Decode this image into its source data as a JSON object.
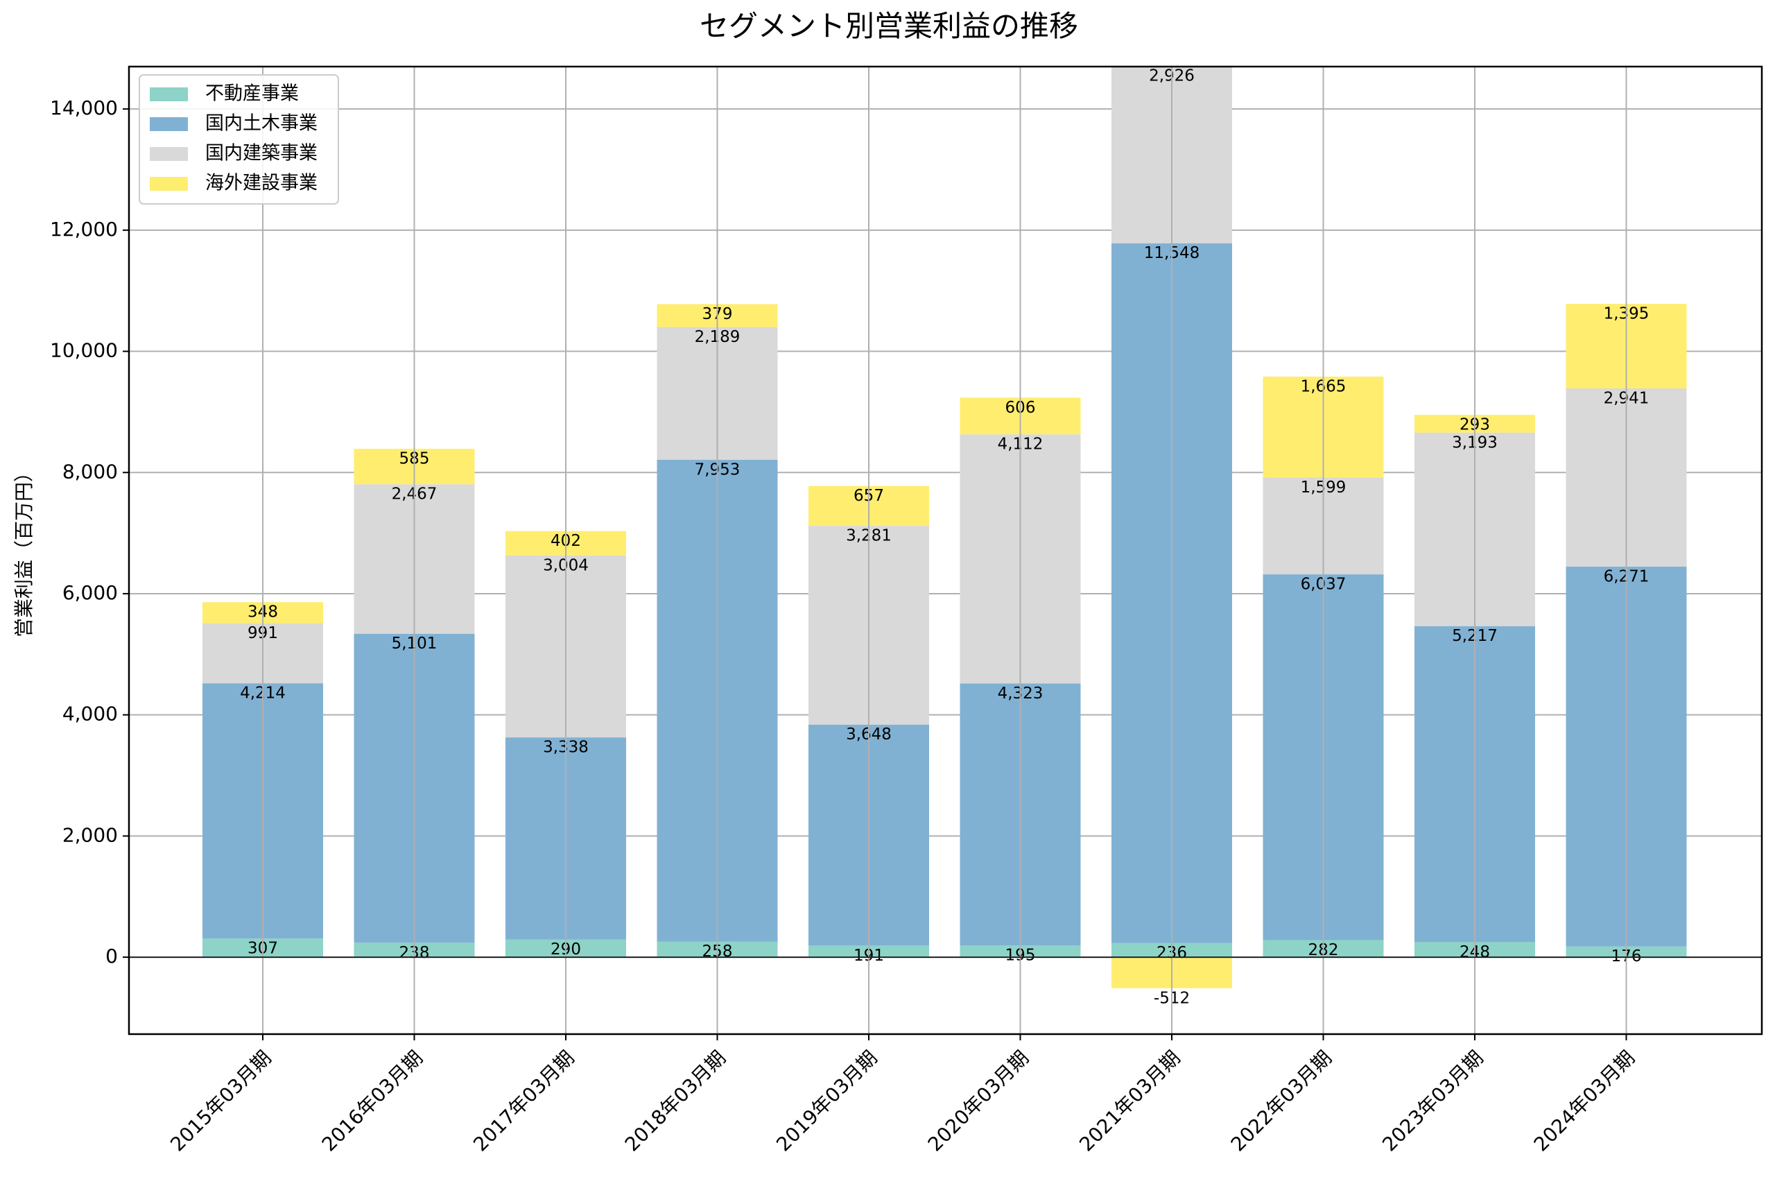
{
  "chart_data": {
    "type": "bar",
    "stacked": true,
    "title": "セグメント別営業利益の推移",
    "xlabel": "",
    "ylabel": "営業利益（百万円）",
    "ylim": [
      -1270,
      14700
    ],
    "yticks": [
      0,
      2000,
      4000,
      6000,
      8000,
      10000,
      12000,
      14000
    ],
    "ytick_labels": [
      "0",
      "2,000",
      "4,000",
      "6,000",
      "8,000",
      "10,000",
      "12,000",
      "14,000"
    ],
    "grid": true,
    "legend_position": "top-left",
    "categories": [
      "2015年03月期",
      "2016年03月期",
      "2017年03月期",
      "2018年03月期",
      "2019年03月期",
      "2020年03月期",
      "2021年03月期",
      "2022年03月期",
      "2023年03月期",
      "2024年03月期"
    ],
    "series": [
      {
        "name": "不動産事業",
        "color": "#8dd3c7",
        "values": [
          307,
          238,
          290,
          258,
          191,
          195,
          236,
          282,
          248,
          176
        ],
        "labels": [
          "307",
          "238",
          "290",
          "258",
          "191",
          "195",
          "236",
          "282",
          "248",
          "176"
        ]
      },
      {
        "name": "国内土木事業",
        "color": "#80b1d3",
        "values": [
          4214,
          5101,
          3338,
          7953,
          3648,
          4323,
          11548,
          6037,
          5217,
          6271
        ],
        "labels": [
          "4,214",
          "5,101",
          "3,338",
          "7,953",
          "3,648",
          "4,323",
          "11,548",
          "6,037",
          "5,217",
          "6,271"
        ]
      },
      {
        "name": "国内建築事業",
        "color": "#d9d9d9",
        "values": [
          991,
          2467,
          3004,
          2189,
          3281,
          4112,
          2926,
          1599,
          3193,
          2941
        ],
        "labels": [
          "991",
          "2,467",
          "3,004",
          "2,189",
          "3,281",
          "4,112",
          "2,926",
          "1,599",
          "3,193",
          "2,941"
        ]
      },
      {
        "name": "海外建設事業",
        "color": "#ffed6f",
        "values": [
          348,
          585,
          402,
          379,
          657,
          606,
          -512,
          1665,
          293,
          1395
        ],
        "labels": [
          "348",
          "585",
          "402",
          "379",
          "657",
          "606",
          "-512",
          "1,665",
          "293",
          "1,395"
        ]
      }
    ]
  }
}
